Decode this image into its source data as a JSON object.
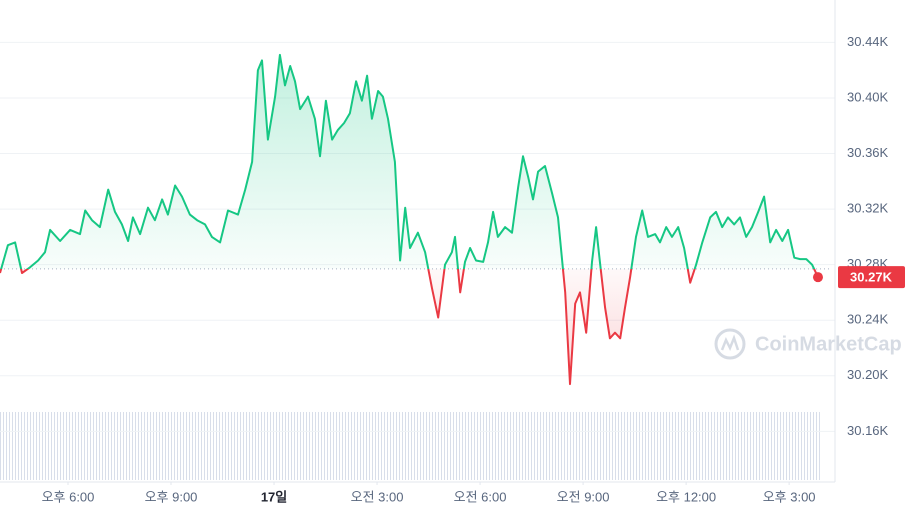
{
  "chart_data": {
    "type": "line",
    "x": [
      16.02,
      16.25,
      16.46,
      16.66,
      16.89,
      17.13,
      17.33,
      17.48,
      17.77,
      18.06,
      18.35,
      18.5,
      18.7,
      18.93,
      19.17,
      19.37,
      19.57,
      19.75,
      19.89,
      20.1,
      20.33,
      20.53,
      20.74,
      20.91,
      21.12,
      21.32,
      21.55,
      21.76,
      21.99,
      22.19,
      22.43,
      22.66,
      22.95,
      23.16,
      23.36,
      23.53,
      23.65,
      23.82,
      24.03,
      24.17,
      24.32,
      24.47,
      24.61,
      24.76,
      24.99,
      25.19,
      25.34,
      25.51,
      25.69,
      25.86,
      26.04,
      26.21,
      26.39,
      26.56,
      26.71,
      26.85,
      27.03,
      27.17,
      27.32,
      27.52,
      27.67,
      27.82,
      27.96,
      28.19,
      28.4,
      28.6,
      28.78,
      28.98,
      29.18,
      29.27,
      29.42,
      29.56,
      29.71,
      29.88,
      30.09,
      30.23,
      30.38,
      30.52,
      30.73,
      30.93,
      31.11,
      31.25,
      31.4,
      31.54,
      31.69,
      31.89,
      32.1,
      32.27,
      32.48,
      32.62,
      32.77,
      32.91,
      33.09,
      33.26,
      33.38,
      33.49,
      33.64,
      33.78,
      33.93,
      34.08,
      34.22,
      34.37,
      34.54,
      34.72,
      34.89,
      35.1,
      35.24,
      35.42,
      35.59,
      35.77,
      35.94,
      36.12,
      36.29,
      36.47,
      36.7,
      36.87,
      37.05,
      37.22,
      37.4,
      37.57,
      37.75,
      37.92,
      38.1,
      38.27,
      38.45,
      38.62,
      38.8,
      38.97,
      39.15,
      39.32,
      39.5,
      39.67,
      39.84
    ],
    "series": [
      {
        "color": "#16c784",
        "values": [
          30.274,
          30.294,
          30.296,
          30.274,
          30.278,
          30.283,
          30.289,
          30.305,
          30.297,
          30.305,
          30.302,
          30.319,
          30.312,
          30.307,
          30.334,
          30.318,
          30.309,
          30.297,
          30.314,
          30.302,
          30.321,
          30.312,
          30.327,
          30.316,
          30.337,
          30.329,
          30.316,
          30.312,
          30.309,
          30.3,
          30.296,
          30.319,
          30.316,
          30.334,
          30.354,
          30.42,
          30.427,
          30.37,
          30.401,
          30.431,
          30.409,
          30.423,
          30.412,
          30.392,
          30.401,
          30.385,
          30.358,
          30.398,
          30.37,
          30.377,
          30.382,
          30.389,
          30.412,
          30.398,
          30.416,
          30.385,
          30.405,
          30.401,
          30.385,
          30.354,
          30.283,
          30.321,
          30.292,
          30.303,
          30.289,
          30.263,
          30.242,
          30.28,
          30.289,
          30.3,
          30.26,
          30.282,
          30.292,
          30.283,
          30.282,
          30.296,
          30.318,
          30.3,
          30.307,
          30.303,
          30.336,
          30.358,
          30.343,
          30.327,
          30.347,
          30.351,
          30.331,
          30.314,
          30.26,
          30.194,
          30.252,
          30.26,
          30.231,
          30.282,
          30.307,
          30.282,
          30.249,
          30.227,
          30.231,
          30.227,
          30.249,
          30.271,
          30.3,
          30.319,
          30.3,
          30.302,
          30.296,
          30.307,
          30.3,
          30.307,
          30.292,
          30.267,
          30.28,
          30.296,
          30.314,
          30.318,
          30.307,
          30.314,
          30.309,
          30.314,
          30.3,
          30.307,
          30.318,
          30.329,
          30.296,
          30.305,
          30.297,
          30.305,
          30.285,
          30.284,
          30.284,
          30.28,
          30.271
        ]
      }
    ],
    "below_color": "#ea3943",
    "baseline": 30.277,
    "xlim": [
      16.02,
      40.19
    ],
    "xticks": [
      {
        "value": 18,
        "label": "오후 6:00"
      },
      {
        "value": 21,
        "label": "오후 9:00"
      },
      {
        "value": 24,
        "label": "17일"
      },
      {
        "value": 27,
        "label": "오전 3:00"
      },
      {
        "value": 30,
        "label": "오전 6:00"
      },
      {
        "value": 33,
        "label": "오전 9:00"
      },
      {
        "value": 36,
        "label": "오후 12:00"
      },
      {
        "value": 39,
        "label": "오후 3:00"
      }
    ],
    "ylim": [
      30.125,
      30.4705
    ],
    "yticks": [
      {
        "value": 30.16,
        "label": "30.16K"
      },
      {
        "value": 30.2,
        "label": "30.20K"
      },
      {
        "value": 30.24,
        "label": "30.24K"
      },
      {
        "value": 30.28,
        "label": "30.28K"
      },
      {
        "value": 30.32,
        "label": "30.32K"
      },
      {
        "value": 30.36,
        "label": "30.36K"
      },
      {
        "value": 30.4,
        "label": "30.40K"
      },
      {
        "value": 30.44,
        "label": "30.44K"
      }
    ],
    "grid": true,
    "current_price": {
      "value": 30.271,
      "label": "30.27K"
    },
    "watermark": "CoinMarketCap"
  }
}
